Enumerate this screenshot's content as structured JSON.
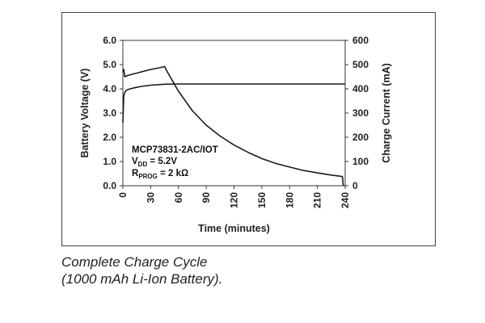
{
  "chart_data": {
    "type": "line",
    "xlabel": "Time (minutes)",
    "ylabel": "Battery Voltage (V)",
    "y2label": "Charge Current (mA)",
    "xlim": [
      0,
      240
    ],
    "ylim": [
      0,
      6
    ],
    "y2lim": [
      0,
      600
    ],
    "x_ticks": [
      "0",
      "30",
      "60",
      "90",
      "120",
      "150",
      "180",
      "210",
      "240"
    ],
    "y_ticks": [
      "0.0",
      "1.0",
      "2.0",
      "3.0",
      "4.0",
      "5.0",
      "6.0"
    ],
    "y2_ticks": [
      "0",
      "100",
      "200",
      "300",
      "400",
      "500",
      "600"
    ],
    "grid": false,
    "series": [
      {
        "axis": "left",
        "color": "#1a1a1a",
        "x": [
          0,
          1,
          2,
          4,
          8,
          12,
          20,
          30,
          45,
          60,
          90,
          120,
          150,
          180,
          210,
          240
        ],
        "y": [
          2.6,
          3.7,
          3.85,
          3.95,
          4.0,
          4.04,
          4.1,
          4.15,
          4.19,
          4.2,
          4.2,
          4.2,
          4.2,
          4.2,
          4.2,
          4.2
        ]
      },
      {
        "axis": "right",
        "color": "#1a1a1a",
        "x": [
          0,
          1,
          2,
          5,
          10,
          20,
          30,
          40,
          45,
          48,
          60,
          75,
          90,
          105,
          120,
          135,
          150,
          165,
          180,
          195,
          210,
          225,
          237,
          238
        ],
        "y": [
          470,
          480,
          450,
          455,
          460,
          470,
          480,
          487,
          492,
          470,
          390,
          310,
          250,
          205,
          168,
          138,
          112,
          92,
          77,
          63,
          53,
          44,
          38,
          0
        ]
      }
    ],
    "annotation": {
      "line1": "MCP73831-2AC/IOT",
      "line2_main": "V",
      "line2_sub": "DD",
      "line2_rest": " = 5.2V",
      "line3_main": "R",
      "line3_sub": "PROG",
      "line3_rest": " = 2 kΩ"
    }
  },
  "caption": {
    "line1": "Complete Charge Cycle",
    "line2": "(1000 mAh Li-Ion Battery)."
  }
}
